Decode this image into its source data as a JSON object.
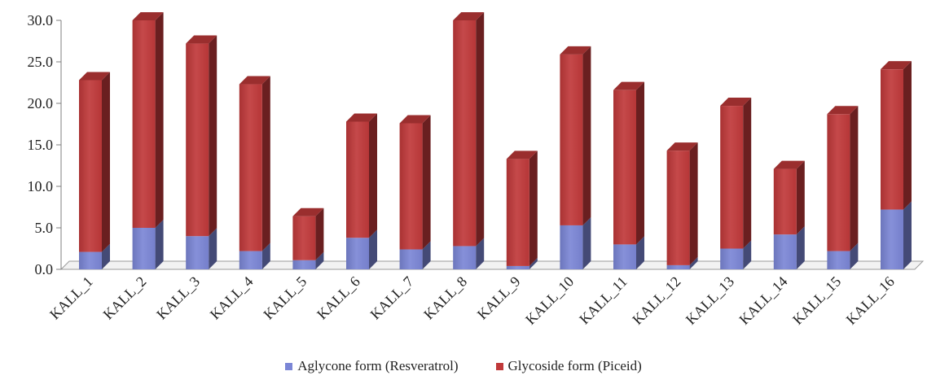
{
  "chart_data": {
    "type": "bar",
    "stacked": true,
    "three_d": true,
    "categories": [
      "KALL_1",
      "KALL_2",
      "KALL_3",
      "KALL_4",
      "KALL_5",
      "KALL_6",
      "KALL_7",
      "KALL_8",
      "KALL_9",
      "KALL_10",
      "KALL_11",
      "KALL_12",
      "KALL_13",
      "KALL_14",
      "KALL_15",
      "KALL_16"
    ],
    "series": [
      {
        "name": "Aglycone form (Resveratrol)",
        "color": "#7b86d6",
        "values": [
          2.1,
          5.0,
          4.0,
          2.2,
          1.1,
          3.8,
          2.4,
          2.8,
          0.4,
          5.3,
          3.0,
          0.5,
          2.5,
          4.2,
          2.2,
          7.2
        ]
      },
      {
        "name": "Glycoside form (Piceid)",
        "color": "#c0393a",
        "values": [
          20.7,
          25.0,
          23.2,
          20.1,
          5.3,
          14.0,
          15.2,
          27.2,
          12.9,
          20.6,
          18.6,
          13.8,
          17.2,
          7.9,
          16.5,
          16.9
        ]
      }
    ],
    "ylim": [
      0,
      30
    ],
    "yticks": [
      "0.0",
      "5.0",
      "10.0",
      "15.0",
      "20.0",
      "25.0",
      "30.0"
    ],
    "title": "",
    "xlabel": "",
    "ylabel": "",
    "grid": false,
    "legend": "bottom"
  }
}
